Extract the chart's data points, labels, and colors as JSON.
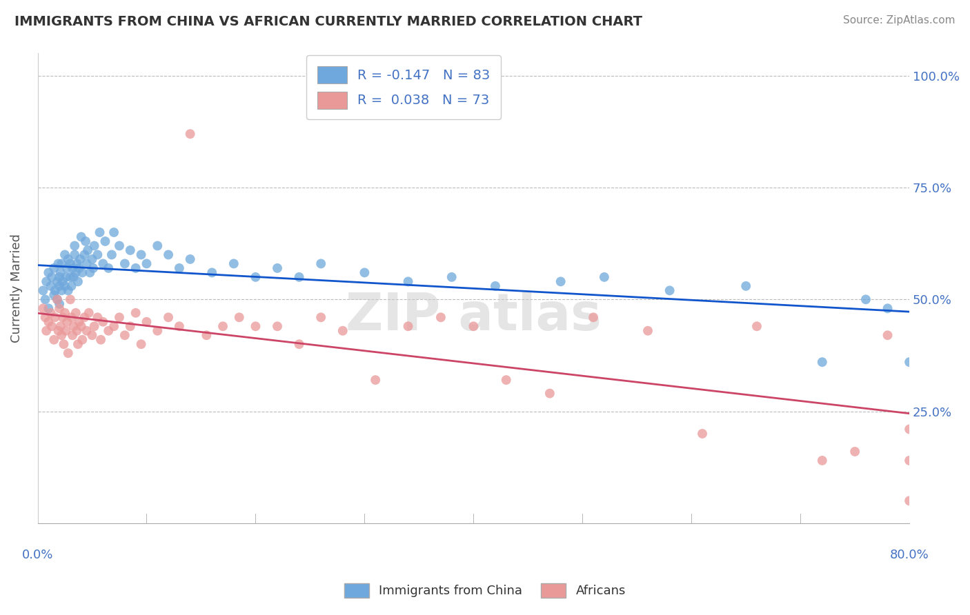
{
  "title": "IMMIGRANTS FROM CHINA VS AFRICAN CURRENTLY MARRIED CORRELATION CHART",
  "source": "Source: ZipAtlas.com",
  "ylabel": "Currently Married",
  "xlim": [
    0.0,
    0.8
  ],
  "ylim": [
    0.0,
    1.05
  ],
  "yticks": [
    0.0,
    0.25,
    0.5,
    0.75,
    1.0
  ],
  "ytick_labels": [
    "",
    "25.0%",
    "50.0%",
    "75.0%",
    "100.0%"
  ],
  "xticks": [
    0.0,
    0.1,
    0.2,
    0.3,
    0.4,
    0.5,
    0.6,
    0.7,
    0.8
  ],
  "blue_R": -0.147,
  "blue_N": 83,
  "pink_R": 0.038,
  "pink_N": 73,
  "blue_color": "#6fa8dc",
  "pink_color": "#ea9999",
  "blue_line_color": "#1155cc",
  "pink_line_color": "#cc4466",
  "legend_labels": [
    "Immigrants from China",
    "Africans"
  ],
  "blue_scatter_x": [
    0.005,
    0.007,
    0.008,
    0.01,
    0.01,
    0.012,
    0.013,
    0.015,
    0.015,
    0.016,
    0.018,
    0.018,
    0.019,
    0.02,
    0.02,
    0.02,
    0.021,
    0.022,
    0.022,
    0.023,
    0.025,
    0.025,
    0.026,
    0.027,
    0.028,
    0.028,
    0.03,
    0.03,
    0.031,
    0.032,
    0.033,
    0.034,
    0.034,
    0.035,
    0.036,
    0.037,
    0.038,
    0.039,
    0.04,
    0.041,
    0.043,
    0.044,
    0.045,
    0.046,
    0.048,
    0.05,
    0.051,
    0.052,
    0.055,
    0.057,
    0.06,
    0.062,
    0.065,
    0.068,
    0.07,
    0.075,
    0.08,
    0.085,
    0.09,
    0.095,
    0.1,
    0.11,
    0.12,
    0.13,
    0.14,
    0.16,
    0.18,
    0.2,
    0.22,
    0.24,
    0.26,
    0.3,
    0.34,
    0.38,
    0.42,
    0.48,
    0.52,
    0.58,
    0.65,
    0.72,
    0.76,
    0.78,
    0.8
  ],
  "blue_scatter_y": [
    0.52,
    0.5,
    0.54,
    0.48,
    0.56,
    0.53,
    0.55,
    0.51,
    0.57,
    0.52,
    0.5,
    0.54,
    0.58,
    0.53,
    0.55,
    0.49,
    0.56,
    0.52,
    0.58,
    0.54,
    0.6,
    0.53,
    0.55,
    0.57,
    0.52,
    0.59,
    0.55,
    0.58,
    0.53,
    0.57,
    0.55,
    0.6,
    0.62,
    0.56,
    0.58,
    0.54,
    0.57,
    0.59,
    0.64,
    0.56,
    0.6,
    0.63,
    0.58,
    0.61,
    0.56,
    0.59,
    0.57,
    0.62,
    0.6,
    0.65,
    0.58,
    0.63,
    0.57,
    0.6,
    0.65,
    0.62,
    0.58,
    0.61,
    0.57,
    0.6,
    0.58,
    0.62,
    0.6,
    0.57,
    0.59,
    0.56,
    0.58,
    0.55,
    0.57,
    0.55,
    0.58,
    0.56,
    0.54,
    0.55,
    0.53,
    0.54,
    0.55,
    0.52,
    0.53,
    0.36,
    0.5,
    0.48,
    0.36
  ],
  "pink_scatter_x": [
    0.005,
    0.007,
    0.008,
    0.01,
    0.012,
    0.013,
    0.015,
    0.016,
    0.018,
    0.019,
    0.02,
    0.021,
    0.022,
    0.023,
    0.024,
    0.025,
    0.026,
    0.027,
    0.028,
    0.03,
    0.031,
    0.032,
    0.033,
    0.035,
    0.036,
    0.037,
    0.038,
    0.04,
    0.041,
    0.043,
    0.045,
    0.047,
    0.05,
    0.052,
    0.055,
    0.058,
    0.06,
    0.065,
    0.07,
    0.075,
    0.08,
    0.085,
    0.09,
    0.095,
    0.1,
    0.11,
    0.12,
    0.13,
    0.14,
    0.155,
    0.17,
    0.185,
    0.2,
    0.22,
    0.24,
    0.26,
    0.28,
    0.31,
    0.34,
    0.37,
    0.4,
    0.43,
    0.47,
    0.51,
    0.56,
    0.61,
    0.66,
    0.72,
    0.75,
    0.78,
    0.8,
    0.8,
    0.8
  ],
  "pink_scatter_y": [
    0.48,
    0.46,
    0.43,
    0.45,
    0.47,
    0.44,
    0.41,
    0.46,
    0.5,
    0.43,
    0.48,
    0.44,
    0.42,
    0.46,
    0.4,
    0.47,
    0.43,
    0.45,
    0.38,
    0.5,
    0.46,
    0.42,
    0.44,
    0.47,
    0.43,
    0.4,
    0.45,
    0.44,
    0.41,
    0.46,
    0.43,
    0.47,
    0.42,
    0.44,
    0.46,
    0.41,
    0.45,
    0.43,
    0.44,
    0.46,
    0.42,
    0.44,
    0.47,
    0.4,
    0.45,
    0.43,
    0.46,
    0.44,
    0.87,
    0.42,
    0.44,
    0.46,
    0.44,
    0.44,
    0.4,
    0.46,
    0.43,
    0.32,
    0.44,
    0.46,
    0.44,
    0.32,
    0.29,
    0.46,
    0.43,
    0.2,
    0.44,
    0.14,
    0.16,
    0.42,
    0.14,
    0.21,
    0.05
  ]
}
